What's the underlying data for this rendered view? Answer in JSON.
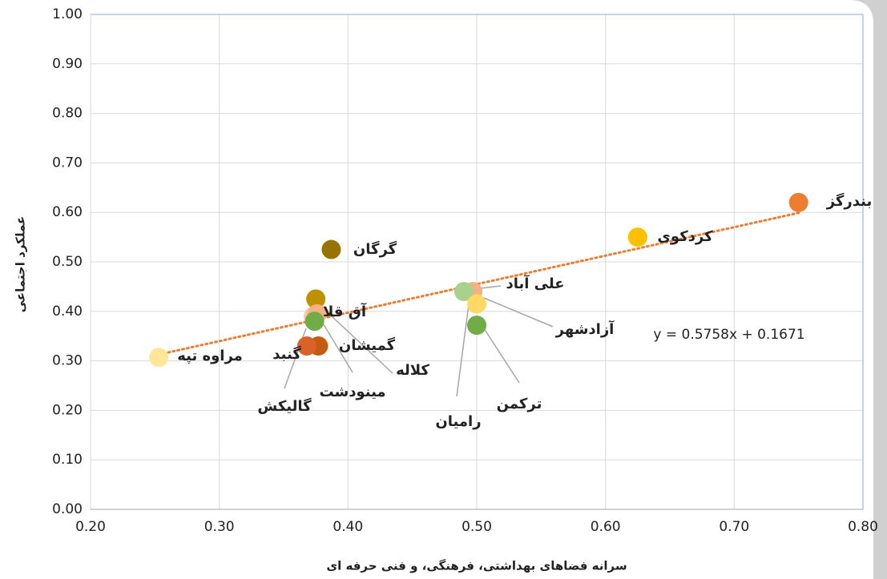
{
  "chart_data": {
    "type": "scatter",
    "x_label": "سرانه فضاهای بهداشتی، فرهنگی، و فنی حرفه ای",
    "y_label": "عملکرد اجتماعی",
    "xlim": [
      0.2,
      0.8
    ],
    "ylim": [
      0,
      1
    ],
    "xticks": [
      {
        "value": 0.2,
        "label": "0.20"
      },
      {
        "value": 0.3,
        "label": "0.30"
      },
      {
        "value": 0.4,
        "label": "0.40"
      },
      {
        "value": 0.5,
        "label": "0.50"
      },
      {
        "value": 0.6,
        "label": "0.60"
      },
      {
        "value": 0.7,
        "label": "0.70"
      },
      {
        "value": 0.8,
        "label": "0.80"
      }
    ],
    "yticks": [
      {
        "value": 0,
        "label": "0.00"
      },
      {
        "value": 0.1,
        "label": "0.10"
      },
      {
        "value": 0.2,
        "label": "0.20"
      },
      {
        "value": 0.3,
        "label": "0.30"
      },
      {
        "value": 0.4,
        "label": "0.40"
      },
      {
        "value": 0.5,
        "label": "0.50"
      },
      {
        "value": 0.6,
        "label": "0.60"
      },
      {
        "value": 0.7,
        "label": "0.70"
      },
      {
        "value": 0.8,
        "label": "0.80"
      },
      {
        "value": 0.9,
        "label": "0.90"
      },
      {
        "value": 1,
        "label": "1.00"
      }
    ],
    "grid": true,
    "points": [
      {
        "name": "بندرگز",
        "x": 0.75,
        "y": 0.62,
        "color": "#ed7d31"
      },
      {
        "name": "کردکوی",
        "x": 0.625,
        "y": 0.55,
        "color": "#ffc000"
      },
      {
        "name": "گرگان",
        "x": 0.387,
        "y": 0.525,
        "color": "#997300"
      },
      {
        "name": "علی آباد",
        "x": 0.497,
        "y": 0.44,
        "color": "#f4b183"
      },
      {
        "name": "رامیان",
        "x": 0.49,
        "y": 0.44,
        "color": "#a9d18e"
      },
      {
        "name": "آزادشهر",
        "x": 0.5,
        "y": 0.415,
        "color": "#ffd966"
      },
      {
        "name": "ترکمن",
        "x": 0.5,
        "y": 0.372,
        "color": "#70ad47"
      },
      {
        "name": "آق قلا",
        "x": 0.375,
        "y": 0.425,
        "color": "#bf9000"
      },
      {
        "name": "مینودشت",
        "x": 0.373,
        "y": 0.39,
        "color": "#f8cbad"
      },
      {
        "name": "کلاله",
        "x": 0.376,
        "y": 0.395,
        "color": "#f4b183"
      },
      {
        "name": "گمیشان",
        "x": 0.374,
        "y": 0.38,
        "color": "#70ad47"
      },
      {
        "name": "گنبد",
        "x": 0.377,
        "y": 0.33,
        "color": "#c55a11"
      },
      {
        "name": "گالیکش",
        "x": 0.368,
        "y": 0.33,
        "color": "#d9622b"
      },
      {
        "name": "مراوه تپه",
        "x": 0.253,
        "y": 0.307,
        "color": "#ffe699"
      }
    ],
    "trendline": {
      "slope": 0.5758,
      "intercept": 0.1671,
      "color": "#ed7d31",
      "label": "y = 0.5758x + 0.1671"
    }
  }
}
